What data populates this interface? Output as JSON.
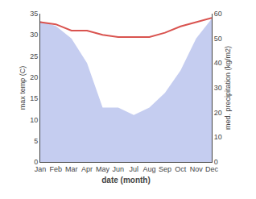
{
  "chart_data": {
    "type": "line",
    "categories": [
      "Jan",
      "Feb",
      "Mar",
      "Apr",
      "May",
      "Jun",
      "Jul",
      "Aug",
      "Sep",
      "Oct",
      "Nov",
      "Dec"
    ],
    "xlabel": "date (month)",
    "ylabel": "max temp (C)",
    "y2label": "med. precipitation (kg/m2)",
    "series": [
      {
        "type": "area",
        "axis": "y2",
        "color": "#c5cdf0",
        "values": [
          57,
          55,
          50,
          40,
          22,
          22,
          19,
          22,
          28,
          37,
          50,
          58
        ]
      },
      {
        "type": "line",
        "color": "#d9534f",
        "values": [
          33,
          32.5,
          31,
          31,
          30,
          29.5,
          29.5,
          29.5,
          30.5,
          32,
          33,
          34
        ]
      }
    ],
    "ylim": [
      0,
      35
    ],
    "yticks": [
      0,
      5,
      10,
      15,
      20,
      25,
      30,
      35
    ],
    "y2lim": [
      0,
      60
    ],
    "y2ticks": [
      0,
      10,
      20,
      30,
      40,
      50,
      60
    ],
    "grid": false
  }
}
